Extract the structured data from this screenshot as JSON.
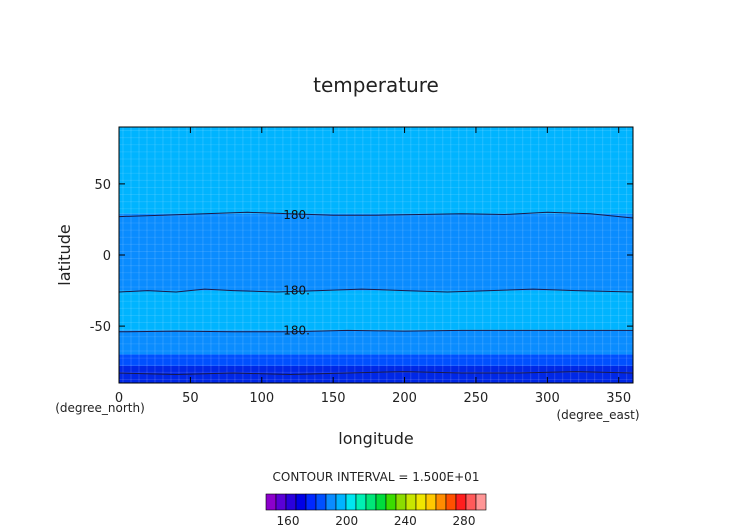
{
  "chart_data": {
    "type": "heatmap",
    "title": "temperature",
    "xlabel": "longitude",
    "ylabel": "latitude",
    "x_unit": "(degree_east)",
    "y_unit": "(degree_north)",
    "xlim": [
      0,
      360
    ],
    "ylim": [
      -90,
      90
    ],
    "x_ticks": [
      0,
      50,
      100,
      150,
      200,
      250,
      300,
      350
    ],
    "y_ticks": [
      -50,
      0,
      50
    ],
    "contour_interval_text": "CONTOUR INTERVAL = 1.500E+01",
    "contour_labels": [
      {
        "text": "180.",
        "lon": 115,
        "lat": 28
      },
      {
        "text": "180.",
        "lon": 115,
        "lat": -25
      },
      {
        "text": "180.",
        "lon": 115,
        "lat": -53
      }
    ],
    "bands": [
      {
        "from_lat": 29,
        "to_lat": 90,
        "color": "#00b4ff"
      },
      {
        "from_lat": -25,
        "to_lat": 29,
        "color": "#0a8cff"
      },
      {
        "from_lat": -53,
        "to_lat": -25,
        "color": "#00b4ff"
      },
      {
        "from_lat": -70,
        "to_lat": -53,
        "color": "#0a8cff"
      },
      {
        "from_lat": -78,
        "to_lat": -70,
        "color": "#0050ff"
      },
      {
        "from_lat": -90,
        "to_lat": -78,
        "color": "#0028e6"
      }
    ],
    "contour_lines": [
      {
        "name": "north",
        "points": [
          [
            0,
            27
          ],
          [
            30,
            28
          ],
          [
            60,
            29
          ],
          [
            90,
            30
          ],
          [
            120,
            29
          ],
          [
            150,
            28
          ],
          [
            180,
            28
          ],
          [
            210,
            28.5
          ],
          [
            240,
            29
          ],
          [
            270,
            28.5
          ],
          [
            300,
            30
          ],
          [
            330,
            29
          ],
          [
            360,
            26
          ]
        ]
      },
      {
        "name": "mid",
        "points": [
          [
            0,
            -26
          ],
          [
            20,
            -25
          ],
          [
            40,
            -26
          ],
          [
            60,
            -24
          ],
          [
            80,
            -25
          ],
          [
            110,
            -26
          ],
          [
            140,
            -25
          ],
          [
            170,
            -24
          ],
          [
            200,
            -25
          ],
          [
            230,
            -26
          ],
          [
            260,
            -25
          ],
          [
            290,
            -24
          ],
          [
            320,
            -25
          ],
          [
            360,
            -26
          ]
        ]
      },
      {
        "name": "south",
        "points": [
          [
            0,
            -54
          ],
          [
            40,
            -53.5
          ],
          [
            80,
            -54
          ],
          [
            120,
            -54
          ],
          [
            160,
            -53
          ],
          [
            200,
            -53.5
          ],
          [
            240,
            -53
          ],
          [
            280,
            -53
          ],
          [
            320,
            -53
          ],
          [
            360,
            -53
          ]
        ]
      },
      {
        "name": "polar",
        "points": [
          [
            0,
            -83
          ],
          [
            40,
            -84
          ],
          [
            80,
            -83
          ],
          [
            120,
            -84
          ],
          [
            160,
            -83
          ],
          [
            200,
            -82
          ],
          [
            240,
            -83
          ],
          [
            280,
            -83
          ],
          [
            320,
            -82
          ],
          [
            360,
            -83
          ]
        ]
      }
    ],
    "colorbar": {
      "ticks": [
        160,
        200,
        240,
        280
      ],
      "vmin": 145,
      "vmax": 295,
      "colors": [
        "#8c00cc",
        "#5a00d6",
        "#2a00dc",
        "#0000e6",
        "#0028ff",
        "#0050ff",
        "#0a8cff",
        "#00b4ff",
        "#00e6f0",
        "#00f0b4",
        "#00e678",
        "#00dc3c",
        "#3cdc00",
        "#8cdc00",
        "#c8e600",
        "#f0e600",
        "#ffc800",
        "#ff8c00",
        "#ff5000",
        "#ff1e1e",
        "#ff5a5a",
        "#ff9696"
      ]
    }
  }
}
